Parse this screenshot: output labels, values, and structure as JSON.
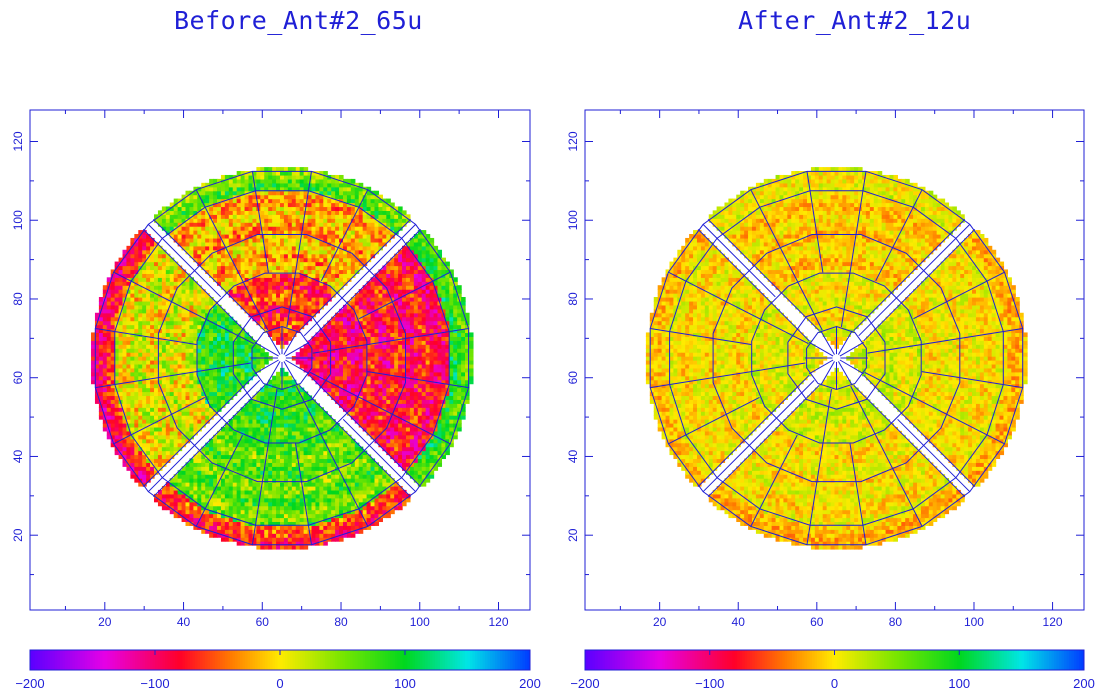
{
  "chart_data": [
    {
      "type": "heatmap",
      "title": "Before_Ant#2_65u",
      "xlim": [
        1,
        128
      ],
      "ylim": [
        1,
        128
      ],
      "x_ticks": [
        20,
        40,
        60,
        80,
        100,
        120
      ],
      "y_ticks": [
        20,
        40,
        60,
        80,
        100,
        120
      ],
      "center": [
        65,
        65
      ],
      "ring_radii": [
        8,
        13,
        22,
        32,
        43,
        48
      ],
      "panel_gaps_deg": [
        -45,
        45,
        135,
        225
      ],
      "colorbar": {
        "min": -200,
        "max": 200,
        "ticks": [
          -200,
          -100,
          0,
          100,
          200
        ]
      },
      "regions": [
        {
          "sector": "upper",
          "ring": "inner",
          "mean": -60
        },
        {
          "sector": "upper",
          "ring": "middle",
          "mean": -20
        },
        {
          "sector": "upper",
          "ring": "outer",
          "mean": 60
        },
        {
          "sector": "right",
          "ring": "inner",
          "mean": -90
        },
        {
          "sector": "right",
          "ring": "middle",
          "mean": -80
        },
        {
          "sector": "right",
          "ring": "outer",
          "mean": 80
        },
        {
          "sector": "lower",
          "ring": "inner",
          "mean": 80
        },
        {
          "sector": "lower",
          "ring": "middle",
          "mean": 60
        },
        {
          "sector": "lower",
          "ring": "outer",
          "mean": -60
        },
        {
          "sector": "left",
          "ring": "inner",
          "mean": 90
        },
        {
          "sector": "left",
          "ring": "middle",
          "mean": 10
        },
        {
          "sector": "left",
          "ring": "outer",
          "mean": -80
        }
      ]
    },
    {
      "type": "heatmap",
      "title": "After_Ant#2_12u",
      "xlim": [
        1,
        128
      ],
      "ylim": [
        1,
        128
      ],
      "x_ticks": [
        20,
        40,
        60,
        80,
        100,
        120
      ],
      "y_ticks": [
        20,
        40,
        60,
        80,
        100,
        120
      ],
      "center": [
        65,
        65
      ],
      "ring_radii": [
        8,
        13,
        22,
        32,
        43,
        48
      ],
      "panel_gaps_deg": [
        -45,
        45,
        135,
        225
      ],
      "colorbar": {
        "min": -200,
        "max": 200,
        "ticks": [
          -200,
          -100,
          0,
          100,
          200
        ]
      },
      "regions": [
        {
          "sector": "upper",
          "ring": "inner",
          "mean": 5
        },
        {
          "sector": "upper",
          "ring": "middle",
          "mean": -10
        },
        {
          "sector": "upper",
          "ring": "outer",
          "mean": 10
        },
        {
          "sector": "right",
          "ring": "inner",
          "mean": 15
        },
        {
          "sector": "right",
          "ring": "middle",
          "mean": 0
        },
        {
          "sector": "right",
          "ring": "outer",
          "mean": -15
        },
        {
          "sector": "lower",
          "ring": "inner",
          "mean": 15
        },
        {
          "sector": "lower",
          "ring": "middle",
          "mean": 0
        },
        {
          "sector": "lower",
          "ring": "outer",
          "mean": -15
        },
        {
          "sector": "left",
          "ring": "inner",
          "mean": 10
        },
        {
          "sector": "left",
          "ring": "middle",
          "mean": 0
        },
        {
          "sector": "left",
          "ring": "outer",
          "mean": -10
        }
      ]
    }
  ],
  "colors": {
    "axis": "#1f1fd6",
    "grid_lines": "#1f1fd6",
    "background": "#ffffff"
  }
}
